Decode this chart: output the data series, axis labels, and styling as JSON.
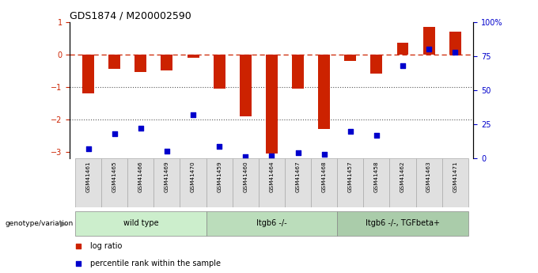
{
  "title": "GDS1874 / M200002590",
  "samples": [
    "GSM41461",
    "GSM41465",
    "GSM41466",
    "GSM41469",
    "GSM41470",
    "GSM41459",
    "GSM41460",
    "GSM41464",
    "GSM41467",
    "GSM41468",
    "GSM41457",
    "GSM41458",
    "GSM41462",
    "GSM41463",
    "GSM41471"
  ],
  "log_ratio": [
    -1.2,
    -0.45,
    -0.55,
    -0.5,
    -0.1,
    -1.05,
    -1.9,
    -3.05,
    -1.05,
    -2.3,
    -0.2,
    -0.6,
    0.35,
    0.85,
    0.7
  ],
  "percentile": [
    7,
    18,
    22,
    5,
    32,
    9,
    1,
    2,
    4,
    3,
    20,
    17,
    68,
    80,
    78
  ],
  "groups": [
    {
      "label": "wild type",
      "start": 0,
      "end": 5,
      "color": "#cceecc"
    },
    {
      "label": "Itgb6 -/-",
      "start": 5,
      "end": 10,
      "color": "#bbddbb"
    },
    {
      "label": "Itgb6 -/-, TGFbeta+",
      "start": 10,
      "end": 15,
      "color": "#aaccaa"
    }
  ],
  "bar_color": "#cc2200",
  "dot_color": "#0000cc",
  "ylim": [
    -3.2,
    1.0
  ],
  "right_ylim": [
    0,
    100
  ],
  "hline_color": "#cc2200",
  "dotted_color": "#555555",
  "legend_items": [
    {
      "label": "log ratio",
      "color": "#cc2200"
    },
    {
      "label": "percentile rank within the sample",
      "color": "#0000cc"
    }
  ],
  "bar_width": 0.45,
  "dot_size": 15
}
